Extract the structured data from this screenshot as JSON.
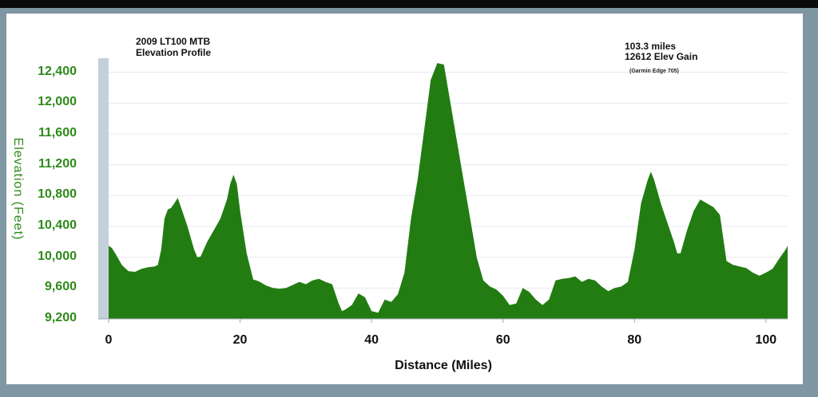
{
  "title_lines": [
    "2009 LT100 MTB",
    "Elevation Profile"
  ],
  "stats": {
    "distance": "103.3 miles",
    "gain": "12612 Elev Gain",
    "device": "(Garmin Edge 705)"
  },
  "colors": {
    "fill": "#227c12",
    "axis_band": "#c5d1da",
    "y_text": "#2e8a1a",
    "background": "#7f96a3"
  },
  "chart_data": {
    "type": "area",
    "xlabel": "Distance (Miles)",
    "ylabel": "Elevation (Feet)",
    "xlim": [
      0,
      103.3
    ],
    "ylim": [
      9200,
      12500
    ],
    "x_ticks": [
      0,
      20,
      40,
      60,
      80,
      100
    ],
    "x_tick_labels": [
      "0",
      "20",
      "40",
      "60",
      "80",
      "100"
    ],
    "y_ticks": [
      9200,
      9600,
      10000,
      10400,
      10800,
      11200,
      11600,
      12000,
      12400
    ],
    "y_tick_labels": [
      "9,200",
      "9,600",
      "10,000",
      "10,400",
      "10,800",
      "11,200",
      "11,600",
      "12,000",
      "12,400"
    ],
    "grid": true,
    "series": [
      {
        "x": [
          0,
          0.5,
          1,
          2,
          3,
          4,
          5,
          6,
          7,
          7.5,
          8,
          8.5,
          9,
          9.5,
          10,
          10.5,
          11,
          12,
          13,
          13.5,
          14,
          15,
          16,
          17,
          18,
          18.5,
          19,
          19.5,
          20,
          21,
          22,
          22.5,
          23,
          24,
          25,
          26,
          27,
          28,
          29,
          30,
          31,
          32,
          33,
          34,
          35,
          35.5,
          36,
          37,
          38,
          39,
          40,
          41,
          42,
          43,
          44,
          45,
          46,
          47,
          48,
          49,
          50,
          51,
          52,
          53,
          54,
          55,
          56,
          57,
          58,
          59,
          60,
          61,
          62,
          63,
          64,
          65,
          66,
          67,
          68,
          69,
          70,
          71,
          72,
          73,
          74,
          75,
          76,
          77,
          78,
          79,
          80,
          81,
          82,
          82.5,
          83,
          84,
          85,
          86,
          86.5,
          87,
          88,
          89,
          90,
          91,
          92,
          93,
          94,
          95,
          96,
          97,
          98,
          99,
          100,
          101,
          102,
          103,
          103.3
        ],
        "y": [
          10150,
          10120,
          10050,
          9900,
          9820,
          9810,
          9850,
          9870,
          9880,
          9900,
          10100,
          10500,
          10620,
          10640,
          10700,
          10770,
          10650,
          10400,
          10100,
          10000,
          10010,
          10200,
          10350,
          10500,
          10750,
          10950,
          11070,
          10950,
          10600,
          10050,
          9710,
          9700,
          9680,
          9630,
          9600,
          9590,
          9600,
          9640,
          9680,
          9650,
          9700,
          9720,
          9680,
          9650,
          9400,
          9300,
          9320,
          9380,
          9530,
          9480,
          9300,
          9280,
          9450,
          9420,
          9520,
          9800,
          10500,
          11000,
          11650,
          12300,
          12520,
          12500,
          12000,
          11500,
          11000,
          10500,
          10000,
          9700,
          9620,
          9580,
          9500,
          9380,
          9400,
          9600,
          9550,
          9450,
          9380,
          9450,
          9700,
          9720,
          9730,
          9750,
          9680,
          9720,
          9700,
          9620,
          9560,
          9600,
          9620,
          9680,
          10100,
          10700,
          11000,
          11110,
          11000,
          10700,
          10450,
          10200,
          10050,
          10050,
          10350,
          10600,
          10750,
          10700,
          10650,
          10550,
          9950,
          9900,
          9880,
          9860,
          9800,
          9760,
          9800,
          9850,
          9980,
          10100,
          10150
        ]
      }
    ]
  }
}
